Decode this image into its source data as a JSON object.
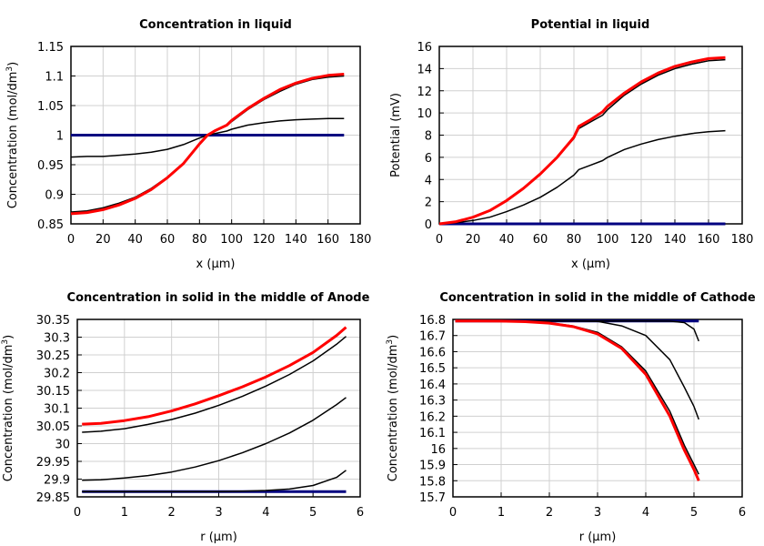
{
  "chart_data": [
    {
      "type": "line",
      "title": "Concentration in liquid",
      "xlabel": "x (µm)",
      "ylabel": "Concentration (mol/dm",
      "ylabel_sup": "3",
      "ylabel_end": ")",
      "xlim": [
        0,
        180
      ],
      "ylim": [
        0.85,
        1.15
      ],
      "xticks": [
        0,
        20,
        40,
        60,
        80,
        100,
        120,
        140,
        160,
        180
      ],
      "yticks": [
        0.85,
        0.9,
        0.95,
        1,
        1.05,
        1.1,
        1.15
      ],
      "ytick_labels": [
        "0.85",
        "0.9",
        "0.95",
        "1",
        "1.05",
        "1.1",
        "1.15"
      ],
      "grid": true,
      "x": [
        0,
        10,
        20,
        30,
        40,
        50,
        60,
        70,
        80,
        85,
        90,
        97,
        100,
        110,
        120,
        130,
        140,
        150,
        160,
        170
      ],
      "series": [
        {
          "color": "#000080",
          "width": 3,
          "values": [
            1,
            1,
            1,
            1,
            1,
            1,
            1,
            1,
            1,
            1,
            1,
            1,
            1,
            1,
            1,
            1,
            1,
            1,
            1,
            1
          ]
        },
        {
          "color": "#000000",
          "width": 1.5,
          "values": [
            0.963,
            0.964,
            0.964,
            0.966,
            0.968,
            0.971,
            0.976,
            0.984,
            0.995,
            1.0,
            1.003,
            1.007,
            1.01,
            1.017,
            1.021,
            1.024,
            1.026,
            1.027,
            1.028,
            1.028
          ]
        },
        {
          "color": "#000000",
          "width": 1.5,
          "values": [
            0.87,
            0.872,
            0.877,
            0.885,
            0.895,
            0.91,
            0.929,
            0.953,
            0.985,
            1.0,
            1.007,
            1.016,
            1.023,
            1.043,
            1.06,
            1.074,
            1.086,
            1.094,
            1.098,
            1.1
          ]
        },
        {
          "color": "#ff0000",
          "width": 3,
          "values": [
            0.867,
            0.869,
            0.874,
            0.882,
            0.893,
            0.908,
            0.928,
            0.952,
            0.985,
            1.0,
            1.008,
            1.017,
            1.025,
            1.045,
            1.062,
            1.077,
            1.088,
            1.096,
            1.101,
            1.103
          ]
        }
      ]
    },
    {
      "type": "line",
      "title": "Potential in liquid",
      "xlabel": "x (µm)",
      "ylabel": "Potential (mV)",
      "ylabel_sup": "",
      "ylabel_end": "",
      "xlim": [
        0,
        180
      ],
      "ylim": [
        0,
        16
      ],
      "xticks": [
        0,
        20,
        40,
        60,
        80,
        100,
        120,
        140,
        160,
        180
      ],
      "yticks": [
        0,
        2,
        4,
        6,
        8,
        10,
        12,
        14,
        16
      ],
      "ytick_labels": [
        "0",
        "2",
        "4",
        "6",
        "8",
        "10",
        "12",
        "14",
        "16"
      ],
      "grid": true,
      "x": [
        0,
        10,
        20,
        30,
        40,
        50,
        60,
        70,
        80,
        83,
        90,
        97,
        100,
        110,
        120,
        130,
        140,
        150,
        160,
        170
      ],
      "series": [
        {
          "color": "#000080",
          "width": 3,
          "values": [
            0,
            0,
            0,
            0,
            0,
            0,
            0,
            0,
            0,
            0,
            0,
            0,
            0,
            0,
            0,
            0,
            0,
            0,
            0,
            0
          ]
        },
        {
          "color": "#000000",
          "width": 1.5,
          "values": [
            0,
            0.1,
            0.3,
            0.6,
            1.1,
            1.7,
            2.4,
            3.3,
            4.4,
            4.9,
            5.3,
            5.7,
            6.0,
            6.7,
            7.2,
            7.6,
            7.9,
            8.15,
            8.3,
            8.4
          ]
        },
        {
          "color": "#000000",
          "width": 1.5,
          "values": [
            0,
            0.2,
            0.6,
            1.2,
            2.1,
            3.2,
            4.5,
            6.0,
            7.7,
            8.6,
            9.2,
            9.8,
            10.3,
            11.6,
            12.6,
            13.4,
            14.0,
            14.4,
            14.7,
            14.8
          ]
        },
        {
          "color": "#ff0000",
          "width": 3,
          "values": [
            0,
            0.2,
            0.6,
            1.2,
            2.1,
            3.2,
            4.5,
            6.0,
            7.8,
            8.8,
            9.4,
            10.1,
            10.6,
            11.8,
            12.8,
            13.6,
            14.2,
            14.6,
            14.9,
            15.0
          ]
        }
      ]
    },
    {
      "type": "line",
      "title": "Concentration in solid in the middle of Anode",
      "xlabel": "r (µm)",
      "ylabel": "Concentration (mol/dm",
      "ylabel_sup": "3",
      "ylabel_end": ")",
      "xlim": [
        0,
        6
      ],
      "ylim": [
        29.85,
        30.35
      ],
      "xticks": [
        0,
        1,
        2,
        3,
        4,
        5,
        6
      ],
      "yticks": [
        29.85,
        29.9,
        29.95,
        30,
        30.05,
        30.1,
        30.15,
        30.2,
        30.25,
        30.3,
        30.35
      ],
      "ytick_labels": [
        "29.85",
        "29.9",
        "29.95",
        "30",
        "30.05",
        "30.1",
        "30.15",
        "30.2",
        "30.25",
        "30.3",
        "30.35"
      ],
      "grid": true,
      "x": [
        0.1,
        0.5,
        1,
        1.5,
        2,
        2.5,
        3,
        3.5,
        4,
        4.5,
        5,
        5.5,
        5.7
      ],
      "series": [
        {
          "color": "#000080",
          "width": 3,
          "values": [
            29.865,
            29.865,
            29.865,
            29.865,
            29.865,
            29.865,
            29.865,
            29.865,
            29.865,
            29.865,
            29.865,
            29.865,
            29.865
          ]
        },
        {
          "color": "#000000",
          "width": 1.5,
          "values": [
            29.865,
            29.865,
            29.865,
            29.865,
            29.865,
            29.865,
            29.865,
            29.866,
            29.868,
            29.872,
            29.882,
            29.905,
            29.925
          ]
        },
        {
          "color": "#000000",
          "width": 1.5,
          "values": [
            29.897,
            29.898,
            29.903,
            29.91,
            29.92,
            29.934,
            29.952,
            29.974,
            30.0,
            30.03,
            30.066,
            30.11,
            30.13
          ]
        },
        {
          "color": "#000000",
          "width": 1.5,
          "values": [
            30.032,
            30.035,
            30.042,
            30.054,
            30.068,
            30.086,
            30.108,
            30.133,
            30.162,
            30.195,
            30.233,
            30.28,
            30.302
          ]
        },
        {
          "color": "#ff0000",
          "width": 3,
          "values": [
            30.055,
            30.057,
            30.065,
            30.076,
            30.092,
            30.112,
            30.135,
            30.16,
            30.188,
            30.22,
            30.257,
            30.305,
            30.328
          ]
        }
      ]
    },
    {
      "type": "line",
      "title": "Concentration in solid in the middle of Cathode",
      "xlabel": "r (µm)",
      "ylabel": "Concentration (mol/dm",
      "ylabel_sup": "3",
      "ylabel_end": ")",
      "xlim": [
        0,
        6
      ],
      "ylim": [
        15.7,
        16.8
      ],
      "xticks": [
        0,
        1,
        2,
        3,
        4,
        5,
        6
      ],
      "yticks": [
        15.7,
        15.8,
        15.9,
        16,
        16.1,
        16.2,
        16.3,
        16.4,
        16.5,
        16.6,
        16.7,
        16.8
      ],
      "ytick_labels": [
        "15.7",
        "15.8",
        "15.9",
        "16",
        "16.1",
        "16.2",
        "16.3",
        "16.4",
        "16.5",
        "16.6",
        "16.7",
        "16.8"
      ],
      "grid": true,
      "x": [
        0.05,
        0.5,
        1,
        1.5,
        2,
        2.5,
        3,
        3.5,
        4,
        4.5,
        4.8,
        5,
        5.1
      ],
      "series": [
        {
          "color": "#000080",
          "width": 3,
          "values": [
            16.79,
            16.79,
            16.79,
            16.79,
            16.79,
            16.79,
            16.79,
            16.79,
            16.79,
            16.79,
            16.79,
            16.79,
            16.79
          ]
        },
        {
          "color": "#000000",
          "width": 1.5,
          "values": [
            16.79,
            16.79,
            16.79,
            16.79,
            16.79,
            16.79,
            16.79,
            16.79,
            16.79,
            16.789,
            16.78,
            16.74,
            16.665
          ]
        },
        {
          "color": "#000000",
          "width": 1.5,
          "values": [
            16.79,
            16.79,
            16.79,
            16.79,
            16.79,
            16.79,
            16.788,
            16.76,
            16.7,
            16.55,
            16.38,
            16.26,
            16.18
          ]
        },
        {
          "color": "#000000",
          "width": 1.5,
          "values": [
            16.79,
            16.79,
            16.789,
            16.787,
            16.779,
            16.759,
            16.72,
            16.63,
            16.48,
            16.23,
            16.02,
            15.9,
            15.84
          ]
        },
        {
          "color": "#ff0000",
          "width": 3,
          "values": [
            16.79,
            16.79,
            16.789,
            16.786,
            16.777,
            16.755,
            16.71,
            16.62,
            16.46,
            16.2,
            15.99,
            15.87,
            15.8
          ]
        }
      ]
    }
  ]
}
